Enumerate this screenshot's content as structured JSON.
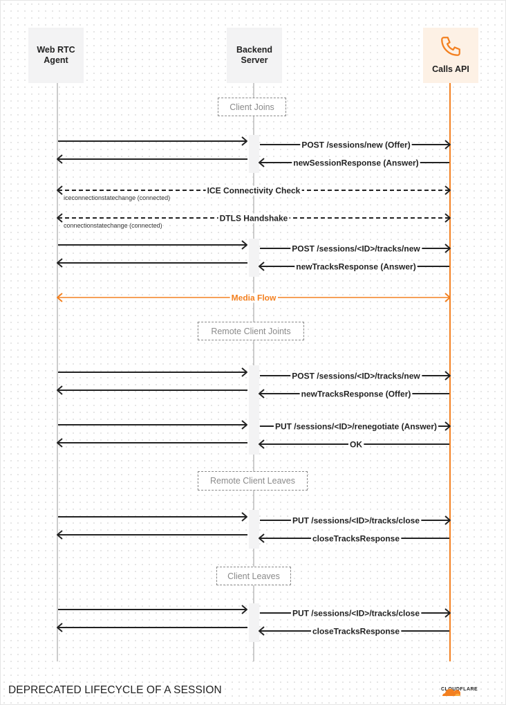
{
  "actors": [
    {
      "id": "agent",
      "label_line1": "Web RTC",
      "label_line2": "Agent"
    },
    {
      "id": "backend",
      "label_line1": "Backend",
      "label_line2": "Server"
    },
    {
      "id": "api",
      "label": "Calls API",
      "icon": "phone-icon"
    }
  ],
  "groups": [
    "Client Joins",
    "Remote Client Joints",
    "Remote Client Leaves",
    "Client Leaves"
  ],
  "messages": [
    {
      "from": "agent",
      "to": "backend",
      "label": "",
      "style": "solid"
    },
    {
      "from": "backend",
      "to": "api",
      "label": "POST /sessions/new (Offer)",
      "style": "solid"
    },
    {
      "from": "backend",
      "to": "agent",
      "label": "",
      "style": "solid"
    },
    {
      "from": "api",
      "to": "backend",
      "label": "newSessionResponse (Answer)",
      "style": "solid"
    },
    {
      "from": "agent",
      "to": "api",
      "label": "ICE Connectivity Check",
      "style": "dashed-both",
      "note": "iceconnectionstatechange (connected)"
    },
    {
      "from": "agent",
      "to": "api",
      "label": "DTLS Handshake",
      "style": "dashed-both",
      "note": "connectionstatechange (connected)"
    },
    {
      "from": "agent",
      "to": "backend",
      "label": "",
      "style": "solid"
    },
    {
      "from": "backend",
      "to": "api",
      "label": "POST /sessions/<ID>/tracks/new",
      "style": "solid"
    },
    {
      "from": "backend",
      "to": "agent",
      "label": "",
      "style": "solid"
    },
    {
      "from": "api",
      "to": "backend",
      "label": "newTracksResponse (Answer)",
      "style": "solid"
    },
    {
      "from": "agent",
      "to": "api",
      "label": "Media Flow",
      "style": "orange-both"
    },
    {
      "from": "agent",
      "to": "backend",
      "label": "",
      "style": "solid"
    },
    {
      "from": "backend",
      "to": "api",
      "label": "POST /sessions/<ID>/tracks/new",
      "style": "solid"
    },
    {
      "from": "backend",
      "to": "agent",
      "label": "",
      "style": "solid"
    },
    {
      "from": "api",
      "to": "backend",
      "label": "newTracksResponse (Offer)",
      "style": "solid"
    },
    {
      "from": "agent",
      "to": "backend",
      "label": "",
      "style": "solid"
    },
    {
      "from": "backend",
      "to": "api",
      "label": "PUT /sessions/<ID>/renegotiate (Answer)",
      "style": "solid"
    },
    {
      "from": "backend",
      "to": "agent",
      "label": "",
      "style": "solid"
    },
    {
      "from": "api",
      "to": "backend",
      "label": "OK",
      "style": "solid"
    },
    {
      "from": "agent",
      "to": "backend",
      "label": "",
      "style": "solid"
    },
    {
      "from": "backend",
      "to": "api",
      "label": "PUT /sessions/<ID>/tracks/close",
      "style": "solid"
    },
    {
      "from": "backend",
      "to": "agent",
      "label": "",
      "style": "solid"
    },
    {
      "from": "api",
      "to": "backend",
      "label": "closeTracksResponse",
      "style": "solid"
    },
    {
      "from": "agent",
      "to": "backend",
      "label": "",
      "style": "solid"
    },
    {
      "from": "backend",
      "to": "api",
      "label": "PUT /sessions/<ID>/tracks/close",
      "style": "solid"
    },
    {
      "from": "backend",
      "to": "agent",
      "label": "",
      "style": "solid"
    },
    {
      "from": "api",
      "to": "backend",
      "label": "closeTracksResponse",
      "style": "solid"
    }
  ],
  "footer": {
    "title": "DEPRECATED LIFECYCLE OF A SESSION",
    "logo_text": "CLOUDFLARE"
  },
  "colors": {
    "accent": "#f38020",
    "line": "#222222",
    "lifeline": "#bbbbbb"
  }
}
